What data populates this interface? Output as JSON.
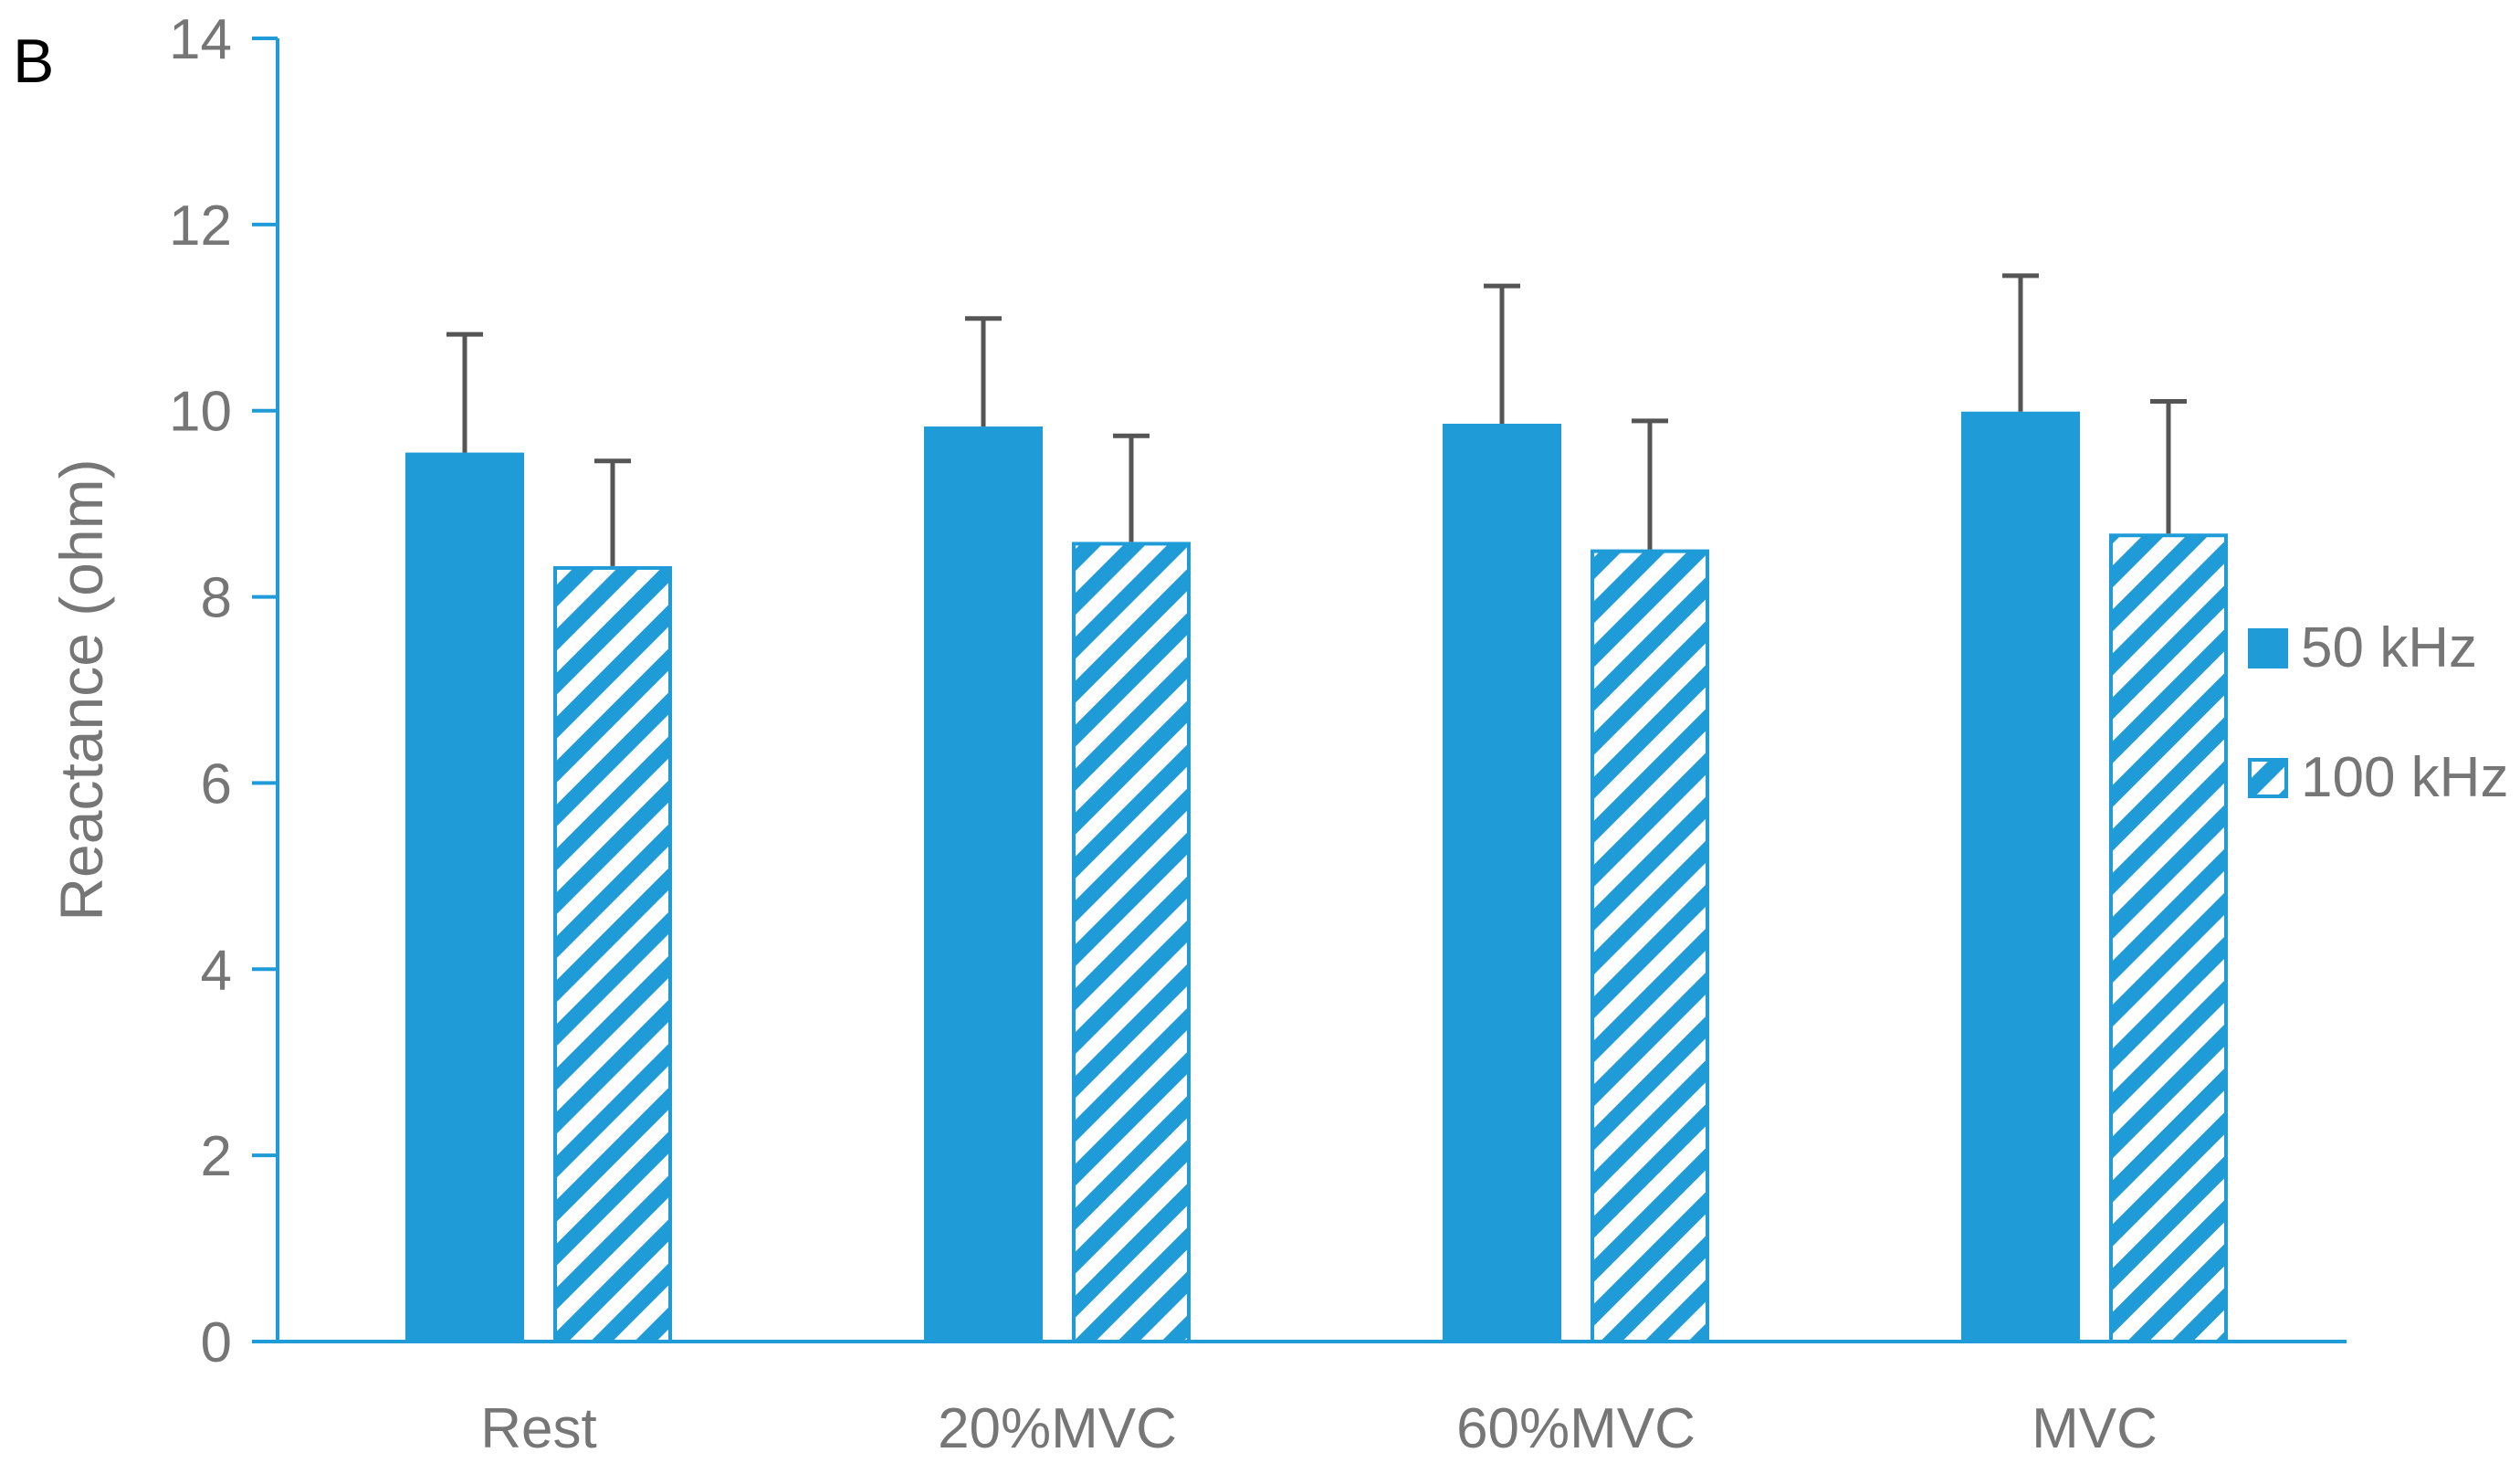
{
  "panel_label": "B",
  "colors": {
    "series_50": "#1f9bd7",
    "series_100_stroke": "#1f9bd7",
    "axis": "#1f9bd7",
    "error_bar": "#555555",
    "text": "#767676"
  },
  "chart_data": {
    "type": "bar",
    "title": "",
    "xlabel": "",
    "ylabel": "Reactance (ohm)",
    "ylim": [
      0,
      14
    ],
    "yticks": [
      0,
      2,
      4,
      6,
      8,
      10,
      12,
      14
    ],
    "grid": false,
    "legend_position": "right",
    "categories": [
      "Rest",
      "20%MVC",
      "60%MVC",
      "MVC"
    ],
    "series": [
      {
        "name": "50 kHz",
        "fill": "solid",
        "values": [
          9.55,
          9.83,
          9.86,
          9.99
        ],
        "errors": [
          1.27,
          1.16,
          1.48,
          1.46
        ]
      },
      {
        "name": "100 kHz",
        "fill": "hatched",
        "values": [
          8.33,
          8.59,
          8.51,
          8.68
        ],
        "errors": [
          1.13,
          1.14,
          1.38,
          1.42
        ]
      }
    ]
  }
}
